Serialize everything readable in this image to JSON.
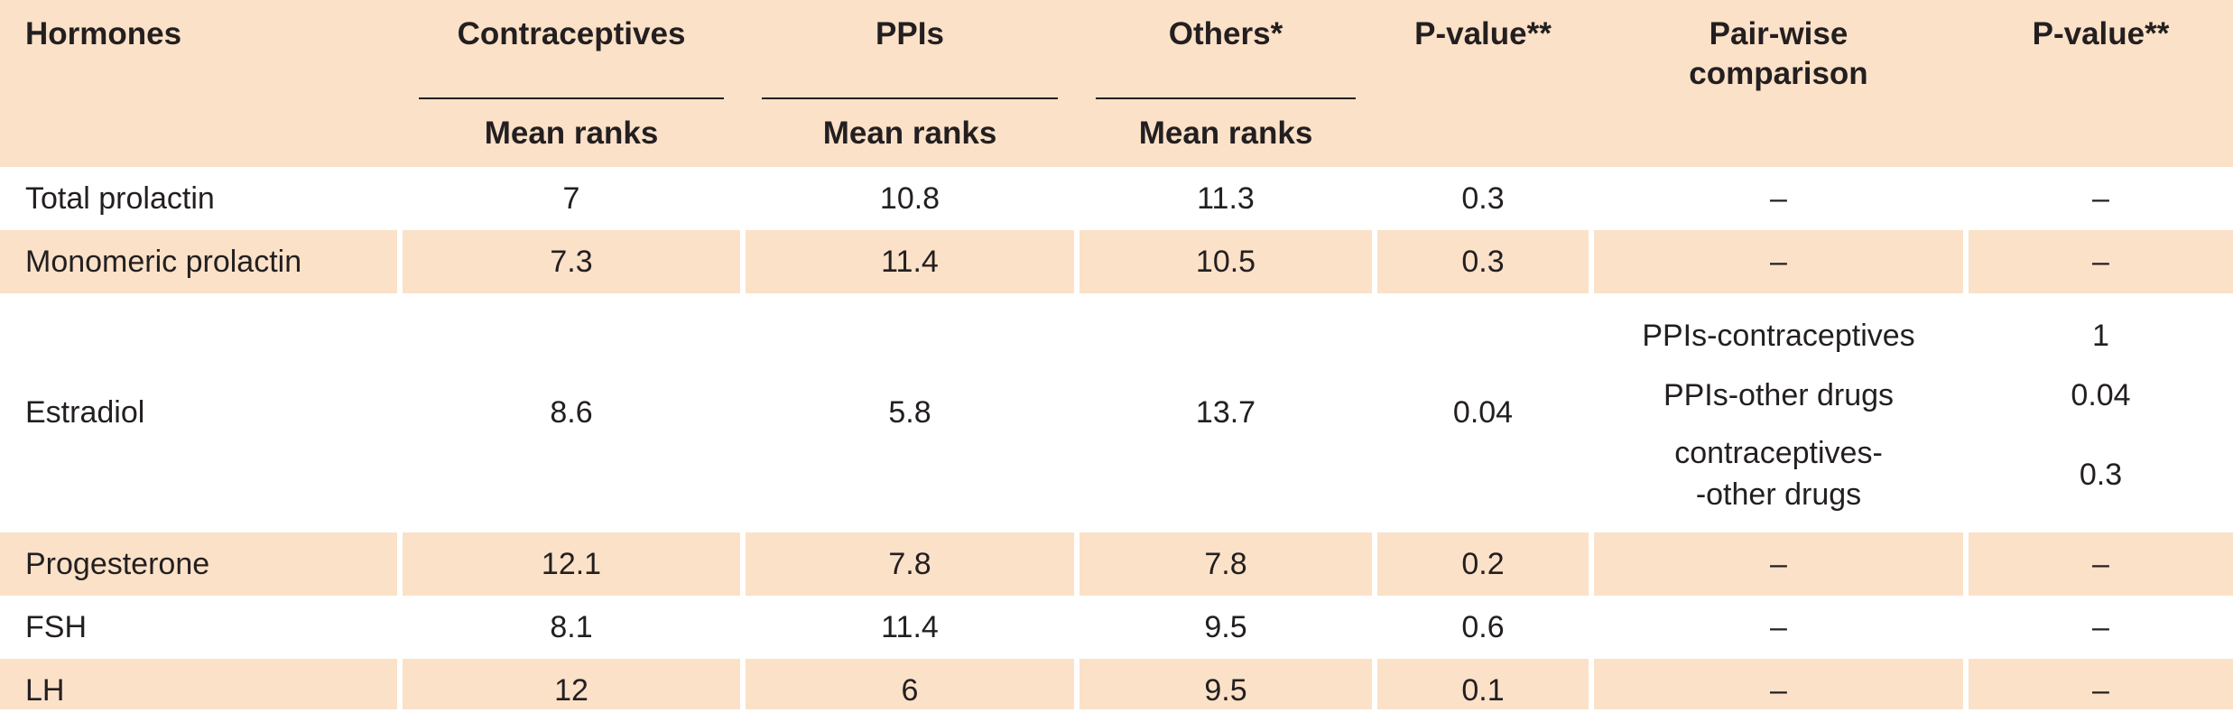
{
  "header": {
    "hormones": "Hormones",
    "contraceptives": "Contraceptives",
    "ppis": "PPIs",
    "others": "Others*",
    "p_value": "P-value**",
    "pairwise_line1": "Pair-wise",
    "pairwise_line2": "comparison",
    "p_value2": "P-value**",
    "mean_ranks_1": "Mean ranks",
    "mean_ranks_2": "Mean ranks",
    "mean_ranks_3": "Mean ranks"
  },
  "rows": [
    {
      "hormone": "Total prolactin",
      "contraceptives": "7",
      "ppis": "10.8",
      "others": "11.3",
      "p": "0.3",
      "pairwise": "–",
      "p2": "–"
    },
    {
      "hormone": "Monomeric prolactin",
      "contraceptives": "7.3",
      "ppis": "11.4",
      "others": "10.5",
      "p": "0.3",
      "pairwise": "–",
      "p2": "–"
    },
    {
      "hormone": "Estradiol",
      "contraceptives": "8.6",
      "ppis": "5.8",
      "others": "13.7",
      "p": "0.04",
      "pairwise_items": [
        "PPIs-contraceptives",
        "PPIs-other drugs",
        "contraceptives-",
        "-other drugs"
      ],
      "p2_items": [
        "1",
        "0.04",
        "0.3"
      ]
    },
    {
      "hormone": "Progesterone",
      "contraceptives": "12.1",
      "ppis": "7.8",
      "others": "7.8",
      "p": "0.2",
      "pairwise": "–",
      "p2": "–"
    },
    {
      "hormone": "FSH",
      "contraceptives": "8.1",
      "ppis": "11.4",
      "others": "9.5",
      "p": "0.6",
      "pairwise": "–",
      "p2": "–"
    },
    {
      "hormone": "LH",
      "contraceptives": "12",
      "ppis": "6",
      "others": "9.5",
      "p": "0.1",
      "pairwise": "–",
      "p2": "–"
    }
  ],
  "colors": {
    "band": "#fbe1c8",
    "text": "#231f20",
    "background": "#ffffff"
  }
}
